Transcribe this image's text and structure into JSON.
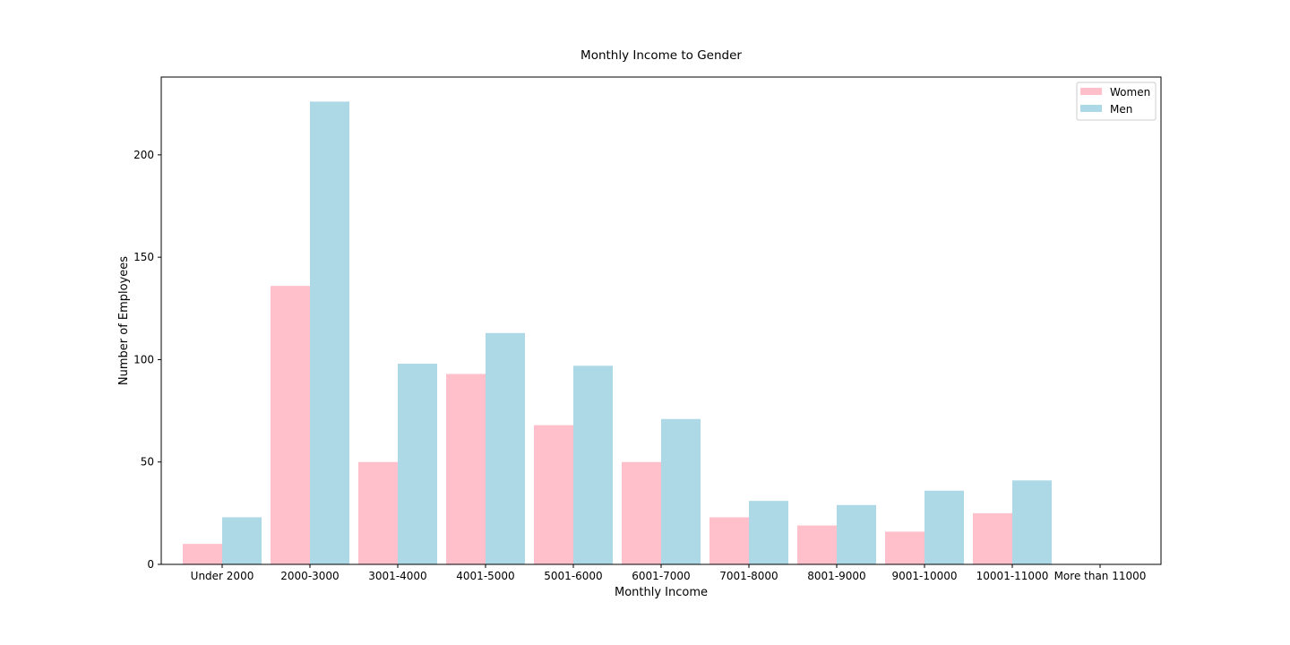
{
  "chart_data": {
    "type": "bar",
    "title": "Monthly Income to Gender",
    "xlabel": "Monthly Income",
    "ylabel": "Number of Employees",
    "categories": [
      "Under 2000",
      "2000-3000",
      "3001-4000",
      "4001-5000",
      "5001-6000",
      "6001-7000",
      "7001-8000",
      "8001-9000",
      "9001-10000",
      "10001-11000",
      "More than 11000"
    ],
    "series": [
      {
        "name": "Women",
        "color": "#ffc0cb",
        "values": [
          10,
          136,
          50,
          93,
          68,
          50,
          23,
          19,
          16,
          25,
          0
        ]
      },
      {
        "name": "Men",
        "color": "#add8e6",
        "values": [
          23,
          226,
          98,
          113,
          97,
          71,
          31,
          29,
          36,
          41,
          0
        ]
      }
    ],
    "ylim": [
      0,
      238
    ],
    "yticks": [
      0,
      50,
      100,
      150,
      200
    ],
    "grid": false,
    "legend_position": "top-right"
  }
}
